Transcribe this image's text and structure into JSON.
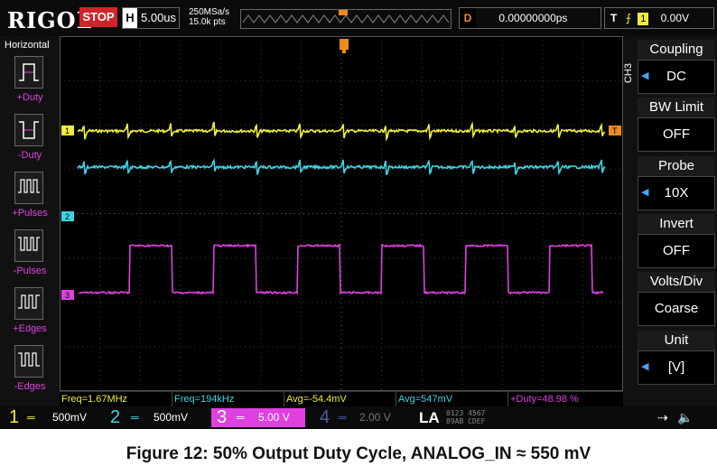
{
  "topbar": {
    "brand": "RIGOL",
    "run_state": "STOP",
    "timebase_letter": "H",
    "timebase_value": "5.00us",
    "sample_rate": "250MSa/s",
    "memory_depth": "15.0k pts",
    "delay_letter": "D",
    "delay_value": "0.00000000ps",
    "trigger_letter": "T",
    "trigger_source": "1",
    "trigger_level": "0.00V"
  },
  "left_panel": {
    "title": "Horizontal",
    "items": [
      {
        "label": "+Duty",
        "icon": "positive-duty-icon"
      },
      {
        "label": "-Duty",
        "icon": "negative-duty-icon"
      },
      {
        "label": "+Pulses",
        "icon": "positive-pulses-icon"
      },
      {
        "label": "-Pulses",
        "icon": "negative-pulses-icon"
      },
      {
        "label": "+Edges",
        "icon": "positive-edges-icon"
      },
      {
        "label": "-Edges",
        "icon": "negative-edges-icon"
      }
    ]
  },
  "right_panel": {
    "channel_label": "CH3",
    "blocks": [
      {
        "name": "Coupling",
        "value": "DC"
      },
      {
        "name": "BW Limit",
        "value": "OFF"
      },
      {
        "name": "Probe",
        "value": "10X"
      },
      {
        "name": "Invert",
        "value": "OFF"
      },
      {
        "name": "Volts/Div",
        "value": "Coarse"
      },
      {
        "name": "Unit",
        "value": "[V]"
      }
    ]
  },
  "measurements": [
    {
      "text": "Freq=1.67MHz",
      "color": "#f0ee3a"
    },
    {
      "text": "Freq=194kHz",
      "color": "#3ad6e6"
    },
    {
      "text": "Avg=-54.4mV",
      "color": "#f0ee3a"
    },
    {
      "text": "Avg=547mV",
      "color": "#3ad6e6"
    },
    {
      "text": "+Duty=48.98 %",
      "color": "#e040e0"
    }
  ],
  "channel_bar": [
    {
      "num": "1",
      "scale": "500mV",
      "color": "#f0ee3a"
    },
    {
      "num": "2",
      "scale": "500mV",
      "color": "#3ad6e6"
    },
    {
      "num": "3",
      "scale": "5.00 V",
      "color": "#e040e0"
    },
    {
      "num": "4",
      "scale": "2.00 V",
      "color": "#4a5aa8"
    }
  ],
  "la_label": "LA",
  "la_digits": [
    "0123",
    "4567",
    "89AB",
    "CDEF"
  ],
  "channel_markers": [
    "1",
    "2",
    "3"
  ],
  "trigger_marker": "T",
  "colors": {
    "ch1": "#f0ee3a",
    "ch2": "#3ad6e6",
    "ch3": "#e040e0",
    "trigger": "#f08a1c"
  },
  "caption": "Figure 12: 50% Output Duty Cycle, ANALOG_IN ≈ 550 mV"
}
